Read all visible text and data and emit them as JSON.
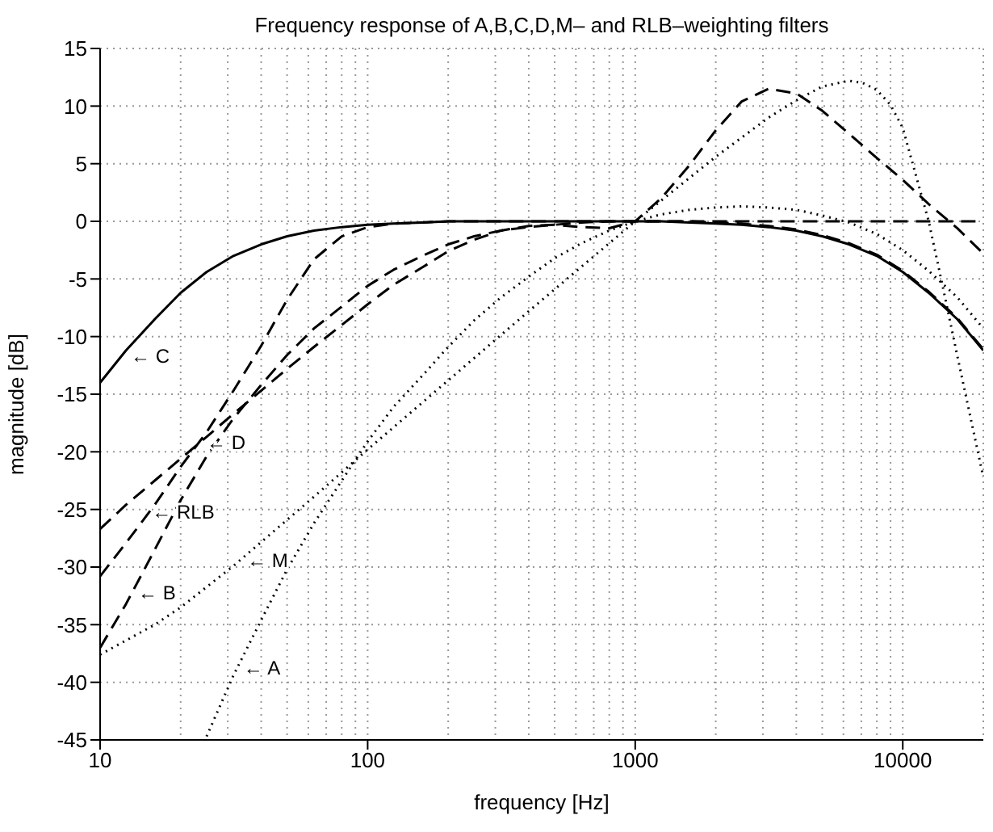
{
  "chart_data": {
    "type": "line",
    "title": "Frequency response of A,B,C,D,M– and RLB–weighting filters",
    "xlabel": "frequency [Hz]",
    "ylabel": "magnitude [dB]",
    "log": "x",
    "xlim": [
      10,
      20000
    ],
    "xticks": [
      10,
      100,
      1000,
      10000
    ],
    "ylim": [
      -45,
      15
    ],
    "yticks": [
      -45,
      -40,
      -35,
      -30,
      -25,
      -20,
      -15,
      -10,
      -5,
      0,
      5,
      10,
      15
    ],
    "grid": true,
    "x": [
      10,
      12.5,
      16,
      20,
      25,
      31.5,
      40,
      50,
      63,
      80,
      100,
      125,
      160,
      200,
      250,
      315,
      400,
      500,
      630,
      800,
      1000,
      1250,
      1600,
      2000,
      2500,
      3150,
      4000,
      5000,
      6300,
      8000,
      10000,
      12500,
      16000,
      20000
    ],
    "series": [
      {
        "color": "#000000",
        "line_style": "solid",
        "values": [
          -14.0,
          -11.2,
          -8.5,
          -6.2,
          -4.4,
          -3.0,
          -2.0,
          -1.3,
          -0.8,
          -0.5,
          -0.3,
          -0.2,
          -0.1,
          0,
          0,
          0,
          0,
          0,
          0,
          0,
          0,
          0,
          -0.1,
          -0.2,
          -0.3,
          -0.5,
          -0.8,
          -1.3,
          -2.0,
          -3.0,
          -4.4,
          -6.2,
          -8.5,
          -11.2
        ]
      },
      {
        "color": "#000000",
        "line_style": "dashed",
        "values": [
          -26.7,
          -24.6,
          -22.5,
          -20.6,
          -18.7,
          -16.7,
          -14.7,
          -12.8,
          -10.9,
          -9.0,
          -7.2,
          -5.5,
          -4.0,
          -2.6,
          -1.6,
          -0.8,
          -0.4,
          -0.3,
          -0.5,
          -0.6,
          0,
          2.0,
          4.9,
          7.9,
          10.4,
          11.5,
          11.1,
          9.6,
          7.6,
          5.5,
          3.6,
          1.5,
          -0.6,
          -2.8
        ]
      },
      {
        "color": "#000000",
        "line_style": "dashed",
        "values": [
          -30.8,
          -27.9,
          -24.6,
          -21.3,
          -18.3,
          -14.7,
          -10.8,
          -6.8,
          -3.3,
          -1.3,
          -0.5,
          -0.2,
          -0.1,
          0,
          0,
          0,
          0,
          0,
          0,
          0,
          0,
          0,
          0,
          0,
          0,
          0,
          0,
          0,
          0,
          0,
          0,
          0,
          0,
          0
        ]
      },
      {
        "color": "#000000",
        "line_style": "dashed",
        "values": [
          -37.0,
          -33.2,
          -28.5,
          -24.2,
          -20.4,
          -17.1,
          -14.2,
          -11.6,
          -9.3,
          -7.4,
          -5.6,
          -4.2,
          -3.0,
          -2.0,
          -1.3,
          -0.8,
          -0.5,
          -0.3,
          -0.1,
          0,
          0,
          0,
          0,
          -0.1,
          -0.2,
          -0.4,
          -0.7,
          -1.2,
          -1.9,
          -2.9,
          -4.3,
          -6.1,
          -8.4,
          -11.1
        ]
      },
      {
        "color": "#000000",
        "line_style": "dotted",
        "x": [
          25,
          31.5,
          40,
          50,
          63,
          80,
          100,
          125,
          160,
          200,
          250,
          315,
          400,
          500,
          630,
          800,
          1000,
          1250,
          1600,
          2000,
          2500,
          3150,
          4000,
          5000,
          6300,
          8000,
          10000,
          12500,
          16000,
          20000
        ],
        "values": [
          -44.7,
          -39.4,
          -34.6,
          -30.2,
          -26.2,
          -22.5,
          -19.1,
          -16.1,
          -13.4,
          -10.9,
          -8.6,
          -6.6,
          -4.8,
          -3.2,
          -1.9,
          -0.8,
          0,
          0.6,
          1.0,
          1.2,
          1.3,
          1.2,
          1.0,
          0.5,
          -0.1,
          -1.1,
          -2.5,
          -4.3,
          -6.6,
          -9.3
        ]
      },
      {
        "color": "#000000",
        "line_style": "dotted",
        "x": [
          10,
          16,
          20,
          31.5,
          63,
          100,
          200,
          400,
          800,
          1000,
          2000,
          3150,
          4000,
          5000,
          6300,
          7100,
          8000,
          9000,
          10000,
          12500,
          14000,
          16000,
          20000
        ],
        "values": [
          -37.6,
          -35.0,
          -33.5,
          -29.9,
          -23.9,
          -19.8,
          -13.8,
          -7.8,
          -1.9,
          0,
          5.6,
          9.0,
          10.5,
          11.7,
          12.2,
          12.0,
          11.4,
          10.1,
          8.1,
          0,
          -5.3,
          -11.7,
          -22.2
        ]
      }
    ],
    "annotations": [
      {
        "text": "← C",
        "x": 12.5,
        "y": -11.7
      },
      {
        "text": "← D",
        "x": 24,
        "y": -19.2
      },
      {
        "text": "← RLB",
        "x": 15,
        "y": -25.2
      },
      {
        "text": "← B",
        "x": 13.3,
        "y": -32.2
      },
      {
        "text": "← M",
        "x": 34,
        "y": -29.4
      },
      {
        "text": "← A",
        "x": 33,
        "y": -38.7
      }
    ]
  }
}
